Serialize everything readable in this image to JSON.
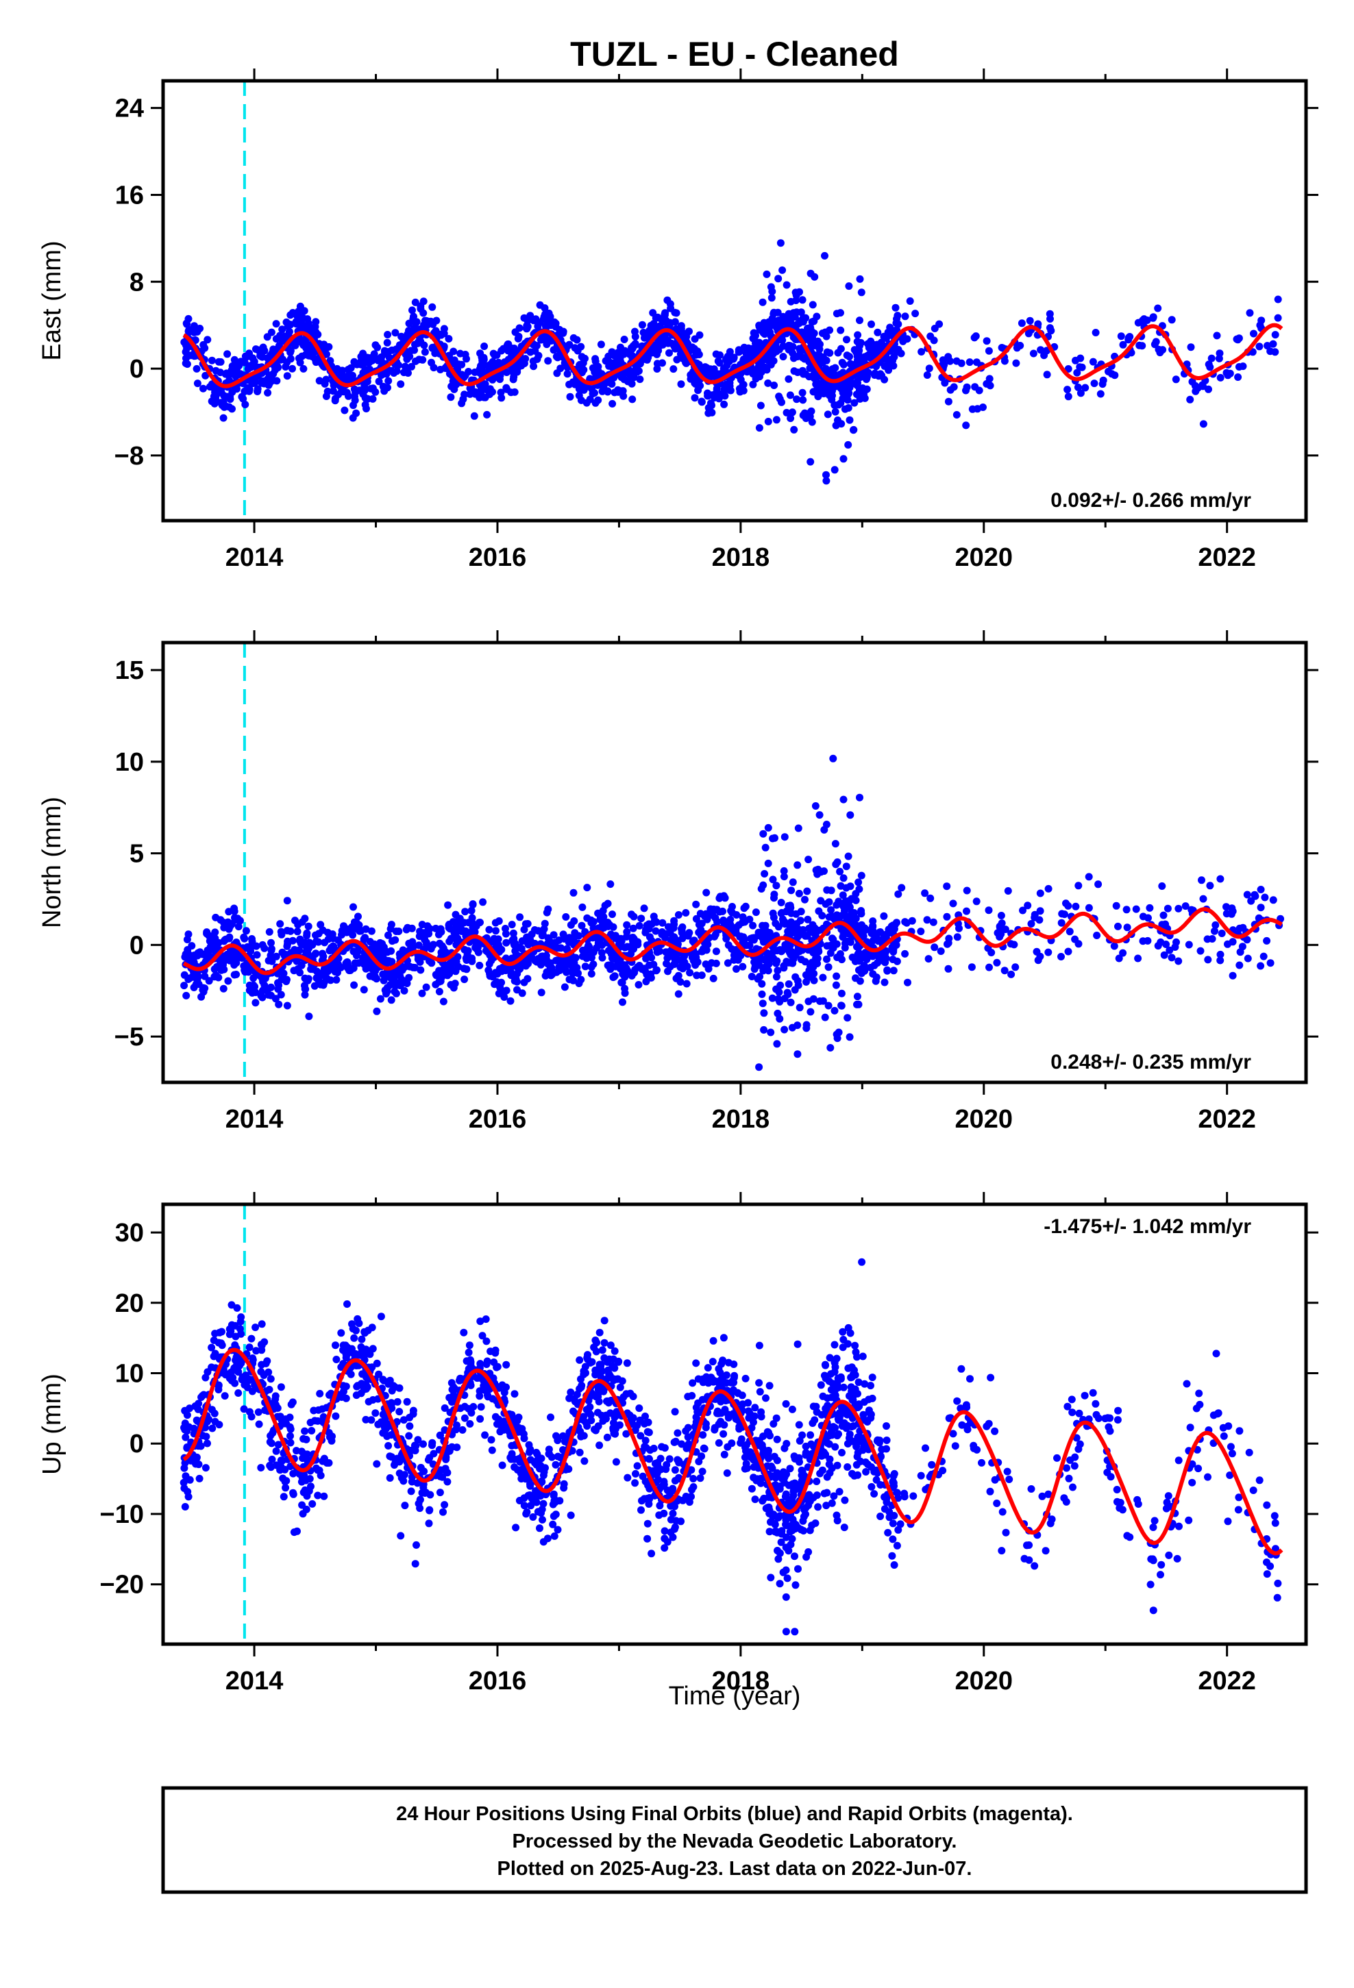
{
  "title": "TUZL  - EU - Cleaned",
  "xlabel": "Time (year)",
  "footer": {
    "line1": "24 Hour Positions Using Final Orbits (blue) and Rapid Orbits (magenta).",
    "line2": "Processed by the Nevada Geodetic Laboratory.",
    "line3": "Plotted on 2025-Aug-23. Last data on 2022-Jun-07."
  },
  "colors": {
    "points": "#0000ff",
    "model": "#ff0000",
    "marker": "#00e5ee",
    "frame": "#000000"
  },
  "chart_data": [
    {
      "type": "scatter",
      "ylabel": "East (mm)",
      "rate_text": "0.092+/- 0.266 mm/yr",
      "rate_position": "bottom-right",
      "xlim": [
        2013.25,
        2022.65
      ],
      "ylim": [
        -14,
        26.5
      ],
      "xticks": [
        2014,
        2016,
        2018,
        2020,
        2022
      ],
      "yticks": [
        -8,
        0,
        8,
        16,
        24
      ],
      "ytick_labels": [
        "−8",
        "0",
        "8",
        "16",
        "24"
      ],
      "vertical_marker_x": 2013.92,
      "model": {
        "offset": 0.5,
        "trend": 0.092,
        "amp1": 2.2,
        "phase1": 0.1,
        "amp2": 0.6,
        "phase2": 0.3
      },
      "series": [
        {
          "name": "data",
          "segments": [
            {
              "x_start": 2013.42,
              "x_end": 2019.3,
              "count": 1600,
              "noise": 1.3
            },
            {
              "x_start": 2018.15,
              "x_end": 2019.0,
              "count": 160,
              "noise": 4.5
            },
            {
              "x_start": 2019.3,
              "x_end": 2022.45,
              "count": 190,
              "noise": 1.6
            }
          ]
        }
      ]
    },
    {
      "type": "scatter",
      "ylabel": "North (mm)",
      "rate_text": "0.248+/- 0.235 mm/yr",
      "rate_position": "bottom-right",
      "xlim": [
        2013.25,
        2022.65
      ],
      "ylim": [
        -7.5,
        16.5
      ],
      "xticks": [
        2014,
        2016,
        2018,
        2020,
        2022
      ],
      "yticks": [
        -5,
        0,
        5,
        10,
        15
      ],
      "ytick_labels": [
        "−5",
        "0",
        "5",
        "10",
        "15"
      ],
      "vertical_marker_x": 2013.92,
      "model": {
        "offset": -1.0,
        "trend": 0.248,
        "amp1": 0.4,
        "phase1": 0.5,
        "amp2": 0.5,
        "phase2": 0.2
      },
      "series": [
        {
          "name": "data",
          "segments": [
            {
              "x_start": 2013.42,
              "x_end": 2019.3,
              "count": 1600,
              "noise": 1.0
            },
            {
              "x_start": 2018.15,
              "x_end": 2019.0,
              "count": 160,
              "noise": 3.5
            },
            {
              "x_start": 2019.3,
              "x_end": 2022.45,
              "count": 190,
              "noise": 1.2
            }
          ]
        }
      ]
    },
    {
      "type": "scatter",
      "ylabel": "Up (mm)",
      "rate_text": "-1.475+/- 1.042 mm/yr",
      "rate_position": "top-right",
      "xlim": [
        2013.25,
        2022.65
      ],
      "ylim": [
        -28.5,
        34
      ],
      "xticks": [
        2014,
        2016,
        2018,
        2020,
        2022
      ],
      "yticks": [
        -20,
        -10,
        0,
        10,
        20,
        30
      ],
      "ytick_labels": [
        "−20",
        "−10",
        "0",
        "10",
        "20",
        "30"
      ],
      "vertical_marker_x": 2013.92,
      "model": {
        "offset": 6.0,
        "trend": -1.475,
        "amp1": 8.0,
        "phase1": 0.62,
        "amp2": 0.8,
        "phase2": 0.1
      },
      "series": [
        {
          "name": "data",
          "segments": [
            {
              "x_start": 2013.42,
              "x_end": 2019.3,
              "count": 1600,
              "noise": 3.8
            },
            {
              "x_start": 2018.15,
              "x_end": 2019.0,
              "count": 160,
              "noise": 8.0
            },
            {
              "x_start": 2019.3,
              "x_end": 2022.45,
              "count": 190,
              "noise": 4.0
            }
          ]
        }
      ]
    }
  ]
}
